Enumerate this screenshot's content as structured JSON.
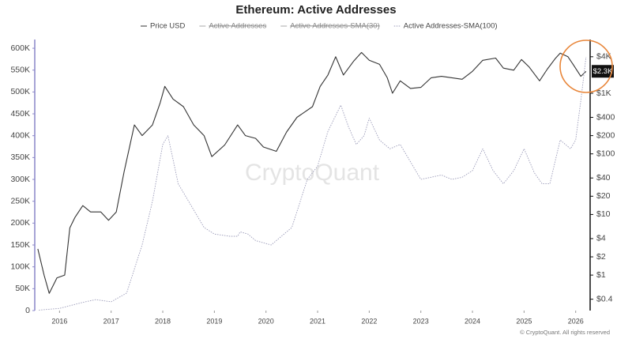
{
  "chart_data": {
    "type": "line",
    "title": "Ethereum: Active Addresses",
    "watermark": "CryptoQuant",
    "footer": "© CryptoQuant. All rights reserved",
    "last_price_label": "$2.3K",
    "hidden_series": [
      "Active Addresses",
      "Active Addresses-SMA(30)"
    ],
    "series": [
      {
        "name": "Price USD",
        "color": "#333333",
        "axis": "y2",
        "x": [
          2015.58,
          2015.7,
          2015.8,
          2015.95,
          2016.1,
          2016.2,
          2016.3,
          2016.45,
          2016.6,
          2016.8,
          2016.95,
          2017.1,
          2017.25,
          2017.45,
          2017.6,
          2017.8,
          2017.95,
          2018.04,
          2018.2,
          2018.4,
          2018.6,
          2018.8,
          2018.95,
          2019.2,
          2019.45,
          2019.6,
          2019.8,
          2019.95,
          2020.2,
          2020.4,
          2020.6,
          2020.9,
          2021.05,
          2021.2,
          2021.35,
          2021.5,
          2021.7,
          2021.85,
          2022.0,
          2022.2,
          2022.35,
          2022.45,
          2022.6,
          2022.8,
          2023.0,
          2023.2,
          2023.4,
          2023.6,
          2023.8,
          2024.0,
          2024.2,
          2024.45,
          2024.6,
          2024.8,
          2024.95,
          2025.1,
          2025.3,
          2025.45,
          2025.6,
          2025.7,
          2025.85,
          2025.95,
          2026.1,
          2026.2
        ],
        "values": [
          2.7,
          1.0,
          0.5,
          0.9,
          1.0,
          6,
          9,
          14,
          11,
          11,
          8,
          11,
          50,
          300,
          200,
          300,
          700,
          1300,
          800,
          600,
          300,
          200,
          90,
          140,
          300,
          200,
          180,
          130,
          110,
          230,
          400,
          600,
          1300,
          2000,
          4000,
          2000,
          3400,
          4700,
          3500,
          3000,
          1800,
          1000,
          1600,
          1200,
          1250,
          1800,
          1900,
          1800,
          1700,
          2300,
          3500,
          3800,
          2600,
          2400,
          3600,
          2700,
          1600,
          2500,
          3700,
          4600,
          4000,
          3000,
          1900,
          2300
        ]
      },
      {
        "name": "Active Addresses-SMA(100)",
        "color": "#9a9ab8",
        "x": [
          2015.6,
          2016.0,
          2016.5,
          2016.7,
          2017.0,
          2017.3,
          2017.6,
          2017.8,
          2018.0,
          2018.1,
          2018.3,
          2018.5,
          2018.8,
          2019.0,
          2019.3,
          2019.45,
          2019.5,
          2019.65,
          2019.8,
          2020.1,
          2020.5,
          2020.8,
          2021.0,
          2021.2,
          2021.45,
          2021.6,
          2021.75,
          2021.9,
          2022.0,
          2022.2,
          2022.4,
          2022.6,
          2022.85,
          2023.0,
          2023.2,
          2023.4,
          2023.6,
          2023.8,
          2024.0,
          2024.2,
          2024.4,
          2024.6,
          2024.8,
          2025.0,
          2025.2,
          2025.35,
          2025.5,
          2025.7,
          2025.9,
          2026.0,
          2026.1,
          2026.2
        ],
        "values": [
          1000,
          5000,
          20000,
          25000,
          20000,
          40000,
          150000,
          250000,
          380000,
          400000,
          290000,
          250000,
          190000,
          175000,
          170000,
          170000,
          180000,
          175000,
          160000,
          150000,
          190000,
          300000,
          330000,
          410000,
          470000,
          420000,
          380000,
          400000,
          440000,
          390000,
          370000,
          380000,
          330000,
          300000,
          305000,
          310000,
          300000,
          305000,
          320000,
          370000,
          320000,
          290000,
          320000,
          370000,
          315000,
          290000,
          290000,
          390000,
          370000,
          390000,
          480000,
          580000
        ]
      }
    ],
    "xlim": [
      2015.52,
      2026.28
    ],
    "xticks": [
      2016,
      2017,
      2018,
      2019,
      2020,
      2021,
      2022,
      2023,
      2024,
      2025,
      2026
    ],
    "ylim": [
      0,
      620000
    ],
    "yticks": [
      0,
      {
        "value": 50000,
        "label": "50K"
      },
      {
        "value": 100000,
        "label": "100K"
      },
      {
        "value": 150000,
        "label": "150K"
      },
      {
        "value": 200000,
        "label": "200K"
      },
      {
        "value": 250000,
        "label": "250K"
      },
      {
        "value": 300000,
        "label": "300K"
      },
      {
        "value": 350000,
        "label": "350K"
      },
      {
        "value": 400000,
        "label": "400K"
      },
      {
        "value": 450000,
        "label": "450K"
      },
      {
        "value": 500000,
        "label": "500K"
      },
      {
        "value": 550000,
        "label": "550K"
      },
      {
        "value": 600000,
        "label": "600K"
      }
    ],
    "y2lim": [
      0.26,
      7700
    ],
    "y2_log": true,
    "y2ticks": [
      {
        "value": 0.4,
        "label": "$0.4"
      },
      {
        "value": 1,
        "label": "$1"
      },
      {
        "value": 2,
        "label": "$2"
      },
      {
        "value": 4,
        "label": "$4"
      },
      {
        "value": 10,
        "label": "$10"
      },
      {
        "value": 20,
        "label": "$20"
      },
      {
        "value": 40,
        "label": "$40"
      },
      {
        "value": 100,
        "label": "$100"
      },
      {
        "value": 200,
        "label": "$200"
      },
      {
        "value": 400,
        "label": "$400"
      },
      {
        "value": 1000,
        "label": "$1K"
      },
      {
        "value": 4000,
        "label": "$4K"
      }
    ],
    "grid": false
  }
}
